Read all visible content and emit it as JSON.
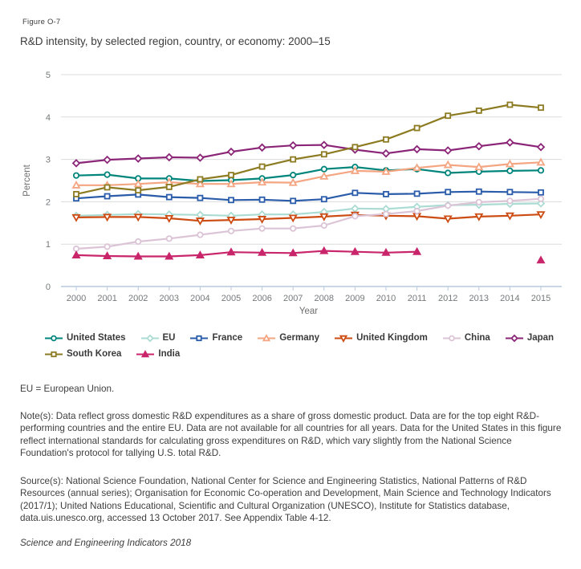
{
  "figure": {
    "label": "Figure O-7",
    "title": "R&D intensity, by selected region, country, or economy: 2000–15"
  },
  "chart_data": {
    "type": "line",
    "title": "R&D intensity, by selected region, country, or economy: 2000–15",
    "xlabel": "Year",
    "ylabel": "Percent",
    "ylim": [
      0,
      5
    ],
    "yticks": [
      0,
      1,
      2,
      3,
      4,
      5
    ],
    "grid": "horizontal",
    "legend_position": "bottom-left",
    "x": [
      2000,
      2001,
      2002,
      2003,
      2004,
      2005,
      2006,
      2007,
      2008,
      2009,
      2010,
      2011,
      2012,
      2013,
      2014,
      2015
    ],
    "series": [
      {
        "name": "United States",
        "color": "#00857B",
        "marker": "circle",
        "marker_fill": "open",
        "values": [
          2.62,
          2.64,
          2.55,
          2.55,
          2.49,
          2.51,
          2.55,
          2.63,
          2.77,
          2.82,
          2.74,
          2.77,
          2.68,
          2.71,
          2.73,
          2.74
        ]
      },
      {
        "name": "EU",
        "color": "#ABDCD3",
        "marker": "diamond",
        "marker_fill": "open",
        "values": [
          1.67,
          1.69,
          1.71,
          1.7,
          1.69,
          1.67,
          1.7,
          1.7,
          1.76,
          1.84,
          1.83,
          1.88,
          1.92,
          1.93,
          1.95,
          1.96
        ]
      },
      {
        "name": "France",
        "color": "#2A5CAA",
        "marker": "square",
        "marker_fill": "open",
        "values": [
          2.08,
          2.13,
          2.17,
          2.11,
          2.09,
          2.04,
          2.05,
          2.02,
          2.06,
          2.21,
          2.18,
          2.19,
          2.23,
          2.24,
          2.23,
          2.22
        ]
      },
      {
        "name": "Germany",
        "color": "#F4A582",
        "marker": "triangle-up",
        "marker_fill": "open",
        "values": [
          2.39,
          2.39,
          2.42,
          2.46,
          2.42,
          2.42,
          2.46,
          2.45,
          2.6,
          2.73,
          2.71,
          2.8,
          2.87,
          2.82,
          2.89,
          2.93
        ]
      },
      {
        "name": "United Kingdom",
        "color": "#CC4C13",
        "marker": "triangle-down",
        "marker_fill": "open",
        "values": [
          1.63,
          1.64,
          1.64,
          1.61,
          1.55,
          1.57,
          1.59,
          1.62,
          1.65,
          1.69,
          1.67,
          1.66,
          1.6,
          1.65,
          1.67,
          1.7
        ]
      },
      {
        "name": "China",
        "color": "#DCC4D7",
        "marker": "circle",
        "marker_fill": "open",
        "values": [
          0.89,
          0.94,
          1.06,
          1.13,
          1.22,
          1.31,
          1.37,
          1.37,
          1.44,
          1.66,
          1.71,
          1.78,
          1.91,
          1.99,
          2.02,
          2.07
        ]
      },
      {
        "name": "Japan",
        "color": "#8B2578",
        "marker": "diamond",
        "marker_fill": "open",
        "values": [
          2.91,
          2.99,
          3.02,
          3.05,
          3.04,
          3.18,
          3.28,
          3.33,
          3.34,
          3.23,
          3.14,
          3.24,
          3.21,
          3.31,
          3.4,
          3.29
        ]
      },
      {
        "name": "South Korea",
        "color": "#8C7B21",
        "marker": "square",
        "marker_fill": "open",
        "values": [
          2.18,
          2.34,
          2.27,
          2.35,
          2.53,
          2.63,
          2.83,
          3.0,
          3.12,
          3.29,
          3.47,
          3.74,
          4.03,
          4.15,
          4.29,
          4.22
        ]
      },
      {
        "name": "India",
        "color": "#C9256B",
        "marker": "triangle-up",
        "marker_fill": "solid",
        "values": [
          0.74,
          0.72,
          0.71,
          0.71,
          0.74,
          0.81,
          0.8,
          0.79,
          0.84,
          0.82,
          0.8,
          0.82,
          null,
          null,
          null,
          0.62
        ]
      }
    ],
    "legend_rows": [
      [
        "United States",
        "EU",
        "France",
        "Germany",
        "United Kingdom",
        "China",
        "Japan"
      ],
      [
        "South Korea",
        "India"
      ]
    ]
  },
  "footer": {
    "eu_note": "EU = European Union.",
    "notes": "Note(s): Data reflect gross domestic R&D expenditures as a share of gross domestic product. Data are for the top eight R&D-performing countries and the entire EU. Data are not available for all countries for all years. Data for the United States in this figure reflect international standards for calculating gross expenditures on R&D, which vary slightly from the National Science Foundation's protocol for tallying U.S. total R&D.",
    "sources": "Source(s): National Science Foundation, National Center for Science and Engineering Statistics, National Patterns of R&D Resources (annual series); Organisation for Economic Co-operation and Development, Main Science and Technology Indicators (2017/1); United Nations Educational, Scientific and Cultural Organization (UNESCO), Institute for Statistics database, data.uis.unesco.org, accessed 13 October 2017. See Appendix Table 4-12.",
    "attribution": "Science and Engineering Indicators 2018"
  }
}
